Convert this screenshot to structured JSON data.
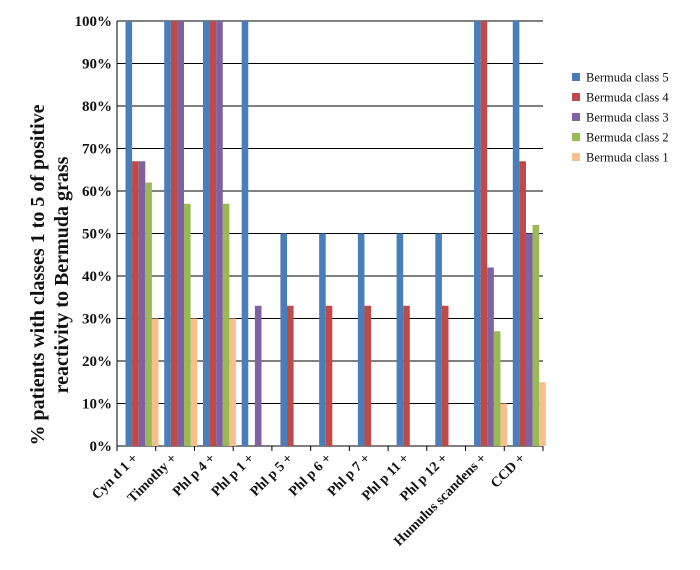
{
  "chart_data": {
    "type": "bar",
    "ylabel_lines": [
      "% patients with classes 1 to 5 of positive",
      "reactivity to Bermuda grass"
    ],
    "ylim": [
      0,
      100
    ],
    "y_ticks": [
      "0%",
      "10%",
      "20%",
      "30%",
      "40%",
      "50%",
      "60%",
      "70%",
      "80%",
      "90%",
      "100%"
    ],
    "categories": [
      "Cyn d 1 +",
      "Timothy +",
      "Phl p 4 +",
      "Phl p 1 +",
      "Phl p 5 +",
      "Phl p 6 +",
      "Phl p 7 +",
      "Phl p 11 +",
      "Phl p 12 +",
      "Humulus scandens +",
      "CCD +"
    ],
    "series": [
      {
        "name": "Bermuda class 5",
        "color": "#4A7EBB",
        "values": [
          100,
          100,
          100,
          100,
          50,
          50,
          50,
          50,
          50,
          100,
          100
        ]
      },
      {
        "name": "Bermuda class 4",
        "color": "#BE4B48",
        "values": [
          67,
          100,
          100,
          0,
          33,
          33,
          33,
          33,
          33,
          100,
          67
        ]
      },
      {
        "name": "Bermuda class 3",
        "color": "#7E62A1",
        "values": [
          67,
          100,
          100,
          33,
          0,
          0,
          0,
          0,
          0,
          42,
          50
        ]
      },
      {
        "name": "Bermuda class 2",
        "color": "#98B954",
        "values": [
          62,
          57,
          57,
          0,
          0,
          0,
          0,
          0,
          0,
          27,
          52
        ]
      },
      {
        "name": "Bermuda class 1",
        "color": "#F9BE8E",
        "values": [
          30,
          30,
          30,
          0,
          0,
          0,
          0,
          0,
          0,
          10,
          15
        ]
      }
    ],
    "grid": true,
    "legend": "right"
  }
}
